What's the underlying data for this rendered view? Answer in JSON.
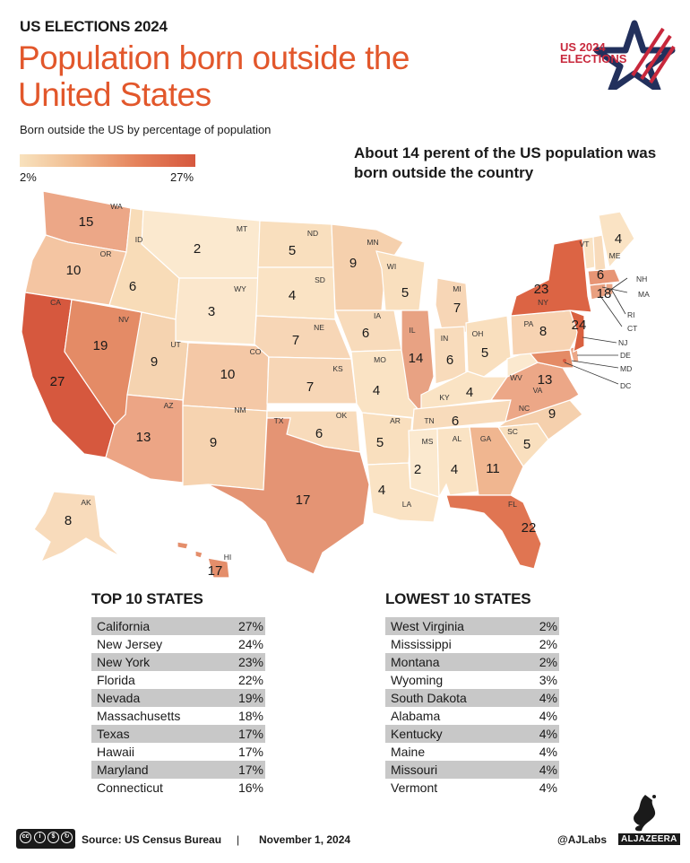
{
  "header": {
    "kicker": "US ELECTIONS 2024",
    "title": "Population born outside the United States"
  },
  "logo": {
    "line1": "US 2024",
    "line2": "ELECTIONS"
  },
  "legend": {
    "title": "Born outside the US by percentage of population",
    "min_label": "2%",
    "max_label": "27%",
    "colors": [
      "#f8e2bd",
      "#f0b98d",
      "#e5825b",
      "#d6583e"
    ]
  },
  "annotation": "About 14 perent of the US population was born outside the country",
  "states": [
    {
      "abbr": "WA",
      "value": "15"
    },
    {
      "abbr": "OR",
      "value": "10"
    },
    {
      "abbr": "CA",
      "value": "27"
    },
    {
      "abbr": "NV",
      "value": "19"
    },
    {
      "abbr": "ID",
      "value": "6"
    },
    {
      "abbr": "MT",
      "value": "2"
    },
    {
      "abbr": "WY",
      "value": "3"
    },
    {
      "abbr": "UT",
      "value": "9"
    },
    {
      "abbr": "AZ",
      "value": "13"
    },
    {
      "abbr": "CO",
      "value": "10"
    },
    {
      "abbr": "NM",
      "value": "9"
    },
    {
      "abbr": "ND",
      "value": "5"
    },
    {
      "abbr": "SD",
      "value": "4"
    },
    {
      "abbr": "NE",
      "value": "7"
    },
    {
      "abbr": "KS",
      "value": "7"
    },
    {
      "abbr": "OK",
      "value": "6"
    },
    {
      "abbr": "TX",
      "value": "17"
    },
    {
      "abbr": "MN",
      "value": "9"
    },
    {
      "abbr": "IA",
      "value": "6"
    },
    {
      "abbr": "MO",
      "value": "4"
    },
    {
      "abbr": "AR",
      "value": "5"
    },
    {
      "abbr": "LA",
      "value": "4"
    },
    {
      "abbr": "WI",
      "value": "5"
    },
    {
      "abbr": "IL",
      "value": "14"
    },
    {
      "abbr": "MI",
      "value": "7"
    },
    {
      "abbr": "IN",
      "value": "6"
    },
    {
      "abbr": "OH",
      "value": "5"
    },
    {
      "abbr": "KY",
      "value": "4"
    },
    {
      "abbr": "TN",
      "value": "6"
    },
    {
      "abbr": "MS",
      "value": "2"
    },
    {
      "abbr": "AL",
      "value": "4"
    },
    {
      "abbr": "GA",
      "value": "11"
    },
    {
      "abbr": "FL",
      "value": "22"
    },
    {
      "abbr": "SC",
      "value": "5"
    },
    {
      "abbr": "NC",
      "value": "9"
    },
    {
      "abbr": "VA",
      "value": "13"
    },
    {
      "abbr": "WV",
      "value": "2"
    },
    {
      "abbr": "PA",
      "value": "8"
    },
    {
      "abbr": "NY",
      "value": "23"
    },
    {
      "abbr": "VT",
      "value": "4"
    },
    {
      "abbr": "ME",
      "value": "4"
    },
    {
      "abbr": "NH",
      "value": "6"
    },
    {
      "abbr": "MA",
      "value": "18"
    },
    {
      "abbr": "RI",
      "value": ""
    },
    {
      "abbr": "CT",
      "value": ""
    },
    {
      "abbr": "NJ",
      "value": "24"
    },
    {
      "abbr": "DE",
      "value": ""
    },
    {
      "abbr": "MD",
      "value": ""
    },
    {
      "abbr": "DC",
      "value": ""
    },
    {
      "abbr": "AK",
      "value": "8"
    },
    {
      "abbr": "HI",
      "value": "17"
    }
  ],
  "top10": {
    "heading": "TOP 10 STATES",
    "rows": [
      {
        "state": "California",
        "pct": "27%"
      },
      {
        "state": "New Jersey",
        "pct": "24%"
      },
      {
        "state": "New York",
        "pct": "23%"
      },
      {
        "state": "Florida",
        "pct": "22%"
      },
      {
        "state": "Nevada",
        "pct": "19%"
      },
      {
        "state": "Massachusetts",
        "pct": "18%"
      },
      {
        "state": "Texas",
        "pct": "17%"
      },
      {
        "state": "Hawaii",
        "pct": "17%"
      },
      {
        "state": "Maryland",
        "pct": "17%"
      },
      {
        "state": "Connecticut",
        "pct": "16%"
      }
    ]
  },
  "lowest10": {
    "heading": "LOWEST 10 STATES",
    "rows": [
      {
        "state": "West Virginia",
        "pct": "2%"
      },
      {
        "state": "Mississippi",
        "pct": "2%"
      },
      {
        "state": "Montana",
        "pct": "2%"
      },
      {
        "state": "Wyoming",
        "pct": "3%"
      },
      {
        "state": "South Dakota",
        "pct": "4%"
      },
      {
        "state": "Alabama",
        "pct": "4%"
      },
      {
        "state": "Kentucky",
        "pct": "4%"
      },
      {
        "state": "Maine",
        "pct": "4%"
      },
      {
        "state": "Missouri",
        "pct": "4%"
      },
      {
        "state": "Vermont",
        "pct": "4%"
      }
    ]
  },
  "footer": {
    "source": "Source:  US Census Bureau",
    "separator": "|",
    "date": "November 1, 2024",
    "handle": "@AJLabs",
    "brand": "ALJAZEERA"
  }
}
